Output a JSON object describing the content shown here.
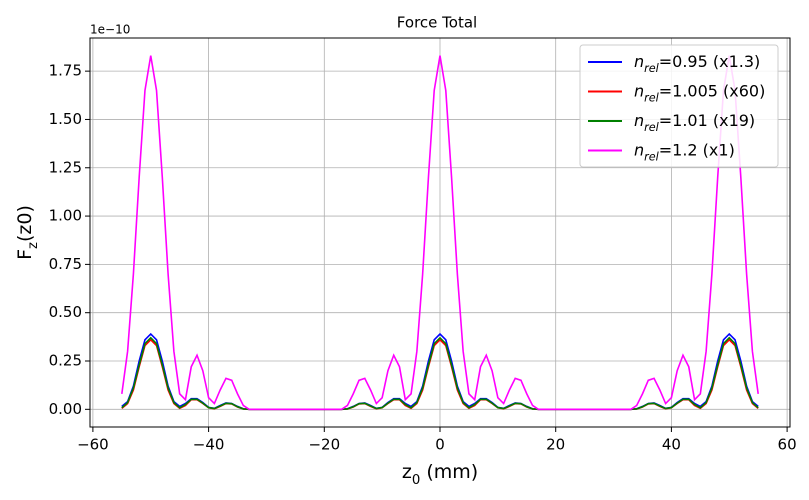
{
  "chart_data": {
    "type": "line",
    "title": "Force Total",
    "xlabel": "z0 (mm)",
    "ylabel": "Fz(z0)",
    "y_offset": "1e−10",
    "x": [
      -55,
      -54,
      -53,
      -52,
      -51,
      -50,
      -49,
      -48,
      -47,
      -46,
      -45,
      -44,
      -43,
      -42,
      -41,
      -40,
      -39,
      -38,
      -37,
      -36,
      -35,
      -34,
      -33,
      -32,
      -31,
      -30,
      -29,
      -28,
      -27,
      -26,
      -25,
      -24,
      -23,
      -22,
      -21,
      -20,
      -19,
      -18,
      -17,
      -16,
      -15,
      -14,
      -13,
      -12,
      -11,
      -10,
      -9,
      -8,
      -7,
      -6,
      -5,
      -4,
      -3,
      -2,
      -1,
      0,
      1,
      2,
      3,
      4,
      5,
      6,
      7,
      8,
      9,
      10,
      11,
      12,
      13,
      14,
      15,
      16,
      17,
      18,
      19,
      20,
      21,
      22,
      23,
      24,
      25,
      26,
      27,
      28,
      29,
      30,
      31,
      32,
      33,
      34,
      35,
      36,
      37,
      38,
      39,
      40,
      41,
      42,
      43,
      44,
      45,
      46,
      47,
      48,
      49,
      50,
      51,
      52,
      53,
      54,
      55
    ],
    "series": [
      {
        "name": "nrel=0.95 (x1.3)",
        "color": "#0000ff",
        "values": [
          0.015,
          0.04,
          0.12,
          0.25,
          0.36,
          0.39,
          0.36,
          0.25,
          0.12,
          0.04,
          0.015,
          0.03,
          0.055,
          0.055,
          0.035,
          0.01,
          0.005,
          0.02,
          0.033,
          0.03,
          0.015,
          0.003,
          0,
          0,
          0,
          0,
          0,
          0,
          0,
          0,
          0,
          0,
          0,
          0,
          0,
          0,
          0,
          0,
          0,
          0.003,
          0.015,
          0.03,
          0.033,
          0.02,
          0.005,
          0.01,
          0.035,
          0.055,
          0.055,
          0.03,
          0.015,
          0.04,
          0.12,
          0.25,
          0.36,
          0.39,
          0.36,
          0.25,
          0.12,
          0.04,
          0.015,
          0.03,
          0.055,
          0.055,
          0.035,
          0.01,
          0.005,
          0.02,
          0.033,
          0.03,
          0.015,
          0.003,
          0,
          0,
          0,
          0,
          0,
          0,
          0,
          0,
          0,
          0,
          0,
          0,
          0,
          0,
          0,
          0,
          0,
          0.003,
          0.015,
          0.03,
          0.033,
          0.02,
          0.005,
          0.01,
          0.035,
          0.055,
          0.055,
          0.03,
          0.015,
          0.04,
          0.12,
          0.25,
          0.36,
          0.39,
          0.36,
          0.25,
          0.12,
          0.04,
          0.015
        ]
      },
      {
        "name": "nrel=1.005 (x60)",
        "color": "#ff0000",
        "values": [
          0.005,
          0.03,
          0.1,
          0.22,
          0.33,
          0.36,
          0.33,
          0.22,
          0.1,
          0.03,
          0.005,
          0.02,
          0.05,
          0.05,
          0.03,
          0.008,
          0.003,
          0.015,
          0.03,
          0.028,
          0.012,
          0.002,
          0,
          0,
          0,
          0,
          0,
          0,
          0,
          0,
          0,
          0,
          0,
          0,
          0,
          0,
          0,
          0,
          0,
          0.002,
          0.012,
          0.028,
          0.03,
          0.015,
          0.003,
          0.008,
          0.03,
          0.05,
          0.05,
          0.02,
          0.005,
          0.03,
          0.1,
          0.22,
          0.33,
          0.36,
          0.33,
          0.22,
          0.1,
          0.03,
          0.005,
          0.02,
          0.05,
          0.05,
          0.03,
          0.008,
          0.003,
          0.015,
          0.03,
          0.028,
          0.012,
          0.002,
          0,
          0,
          0,
          0,
          0,
          0,
          0,
          0,
          0,
          0,
          0,
          0,
          0,
          0,
          0,
          0,
          0,
          0.002,
          0.012,
          0.028,
          0.03,
          0.015,
          0.003,
          0.008,
          0.03,
          0.05,
          0.05,
          0.02,
          0.005,
          0.03,
          0.1,
          0.22,
          0.33,
          0.36,
          0.33,
          0.22,
          0.1,
          0.03,
          0.005
        ]
      },
      {
        "name": "nrel=1.01 (x19)",
        "color": "#008000",
        "values": [
          0.008,
          0.035,
          0.11,
          0.23,
          0.34,
          0.37,
          0.34,
          0.23,
          0.11,
          0.035,
          0.008,
          0.025,
          0.052,
          0.052,
          0.032,
          0.009,
          0.004,
          0.017,
          0.031,
          0.029,
          0.013,
          0.002,
          0,
          0,
          0,
          0,
          0,
          0,
          0,
          0,
          0,
          0,
          0,
          0,
          0,
          0,
          0,
          0,
          0,
          0.002,
          0.013,
          0.029,
          0.031,
          0.017,
          0.004,
          0.009,
          0.032,
          0.052,
          0.052,
          0.025,
          0.008,
          0.035,
          0.11,
          0.23,
          0.34,
          0.37,
          0.34,
          0.23,
          0.11,
          0.035,
          0.008,
          0.025,
          0.052,
          0.052,
          0.032,
          0.009,
          0.004,
          0.017,
          0.031,
          0.029,
          0.013,
          0.002,
          0,
          0,
          0,
          0,
          0,
          0,
          0,
          0,
          0,
          0,
          0,
          0,
          0,
          0,
          0,
          0,
          0,
          0.002,
          0.013,
          0.029,
          0.031,
          0.017,
          0.004,
          0.009,
          0.032,
          0.052,
          0.052,
          0.025,
          0.008,
          0.035,
          0.11,
          0.23,
          0.34,
          0.37,
          0.34,
          0.23,
          0.11,
          0.035,
          0.008
        ]
      },
      {
        "name": "nrel=1.2 (x1)",
        "color": "#ff00ff",
        "values": [
          0.08,
          0.3,
          0.7,
          1.2,
          1.65,
          1.83,
          1.65,
          1.2,
          0.7,
          0.3,
          0.08,
          0.05,
          0.22,
          0.28,
          0.2,
          0.06,
          0.03,
          0.1,
          0.16,
          0.15,
          0.08,
          0.02,
          0,
          0,
          0,
          0,
          0,
          0,
          0,
          0,
          0,
          0,
          0,
          0,
          0,
          0,
          0,
          0,
          0,
          0.02,
          0.08,
          0.15,
          0.16,
          0.1,
          0.03,
          0.06,
          0.2,
          0.28,
          0.22,
          0.05,
          0.08,
          0.3,
          0.7,
          1.2,
          1.65,
          1.83,
          1.65,
          1.2,
          0.7,
          0.3,
          0.08,
          0.05,
          0.22,
          0.28,
          0.2,
          0.06,
          0.03,
          0.1,
          0.16,
          0.15,
          0.08,
          0.02,
          0,
          0,
          0,
          0,
          0,
          0,
          0,
          0,
          0,
          0,
          0,
          0,
          0,
          0,
          0,
          0,
          0,
          0.02,
          0.08,
          0.15,
          0.16,
          0.1,
          0.03,
          0.06,
          0.2,
          0.28,
          0.22,
          0.05,
          0.08,
          0.3,
          0.7,
          1.2,
          1.65,
          1.83,
          1.65,
          1.2,
          0.7,
          0.3,
          0.08
        ]
      }
    ],
    "xlim": [
      -60.5,
      60.5
    ],
    "xticks": [
      {
        "value": -60,
        "label": "−60"
      },
      {
        "value": -40,
        "label": "−40"
      },
      {
        "value": -20,
        "label": "−20"
      },
      0,
      20,
      40,
      60
    ],
    "ylim": [
      -0.0915,
      1.9215
    ],
    "yticks": [
      {
        "value": 0,
        "label": "0.00"
      },
      0.25,
      {
        "value": 0.5,
        "label": "0.50"
      },
      0.75,
      {
        "value": 1,
        "label": "1.00"
      },
      1.25,
      {
        "value": 1.5,
        "label": "1.50"
      },
      1.75
    ],
    "grid": true,
    "legend": "upper right"
  }
}
